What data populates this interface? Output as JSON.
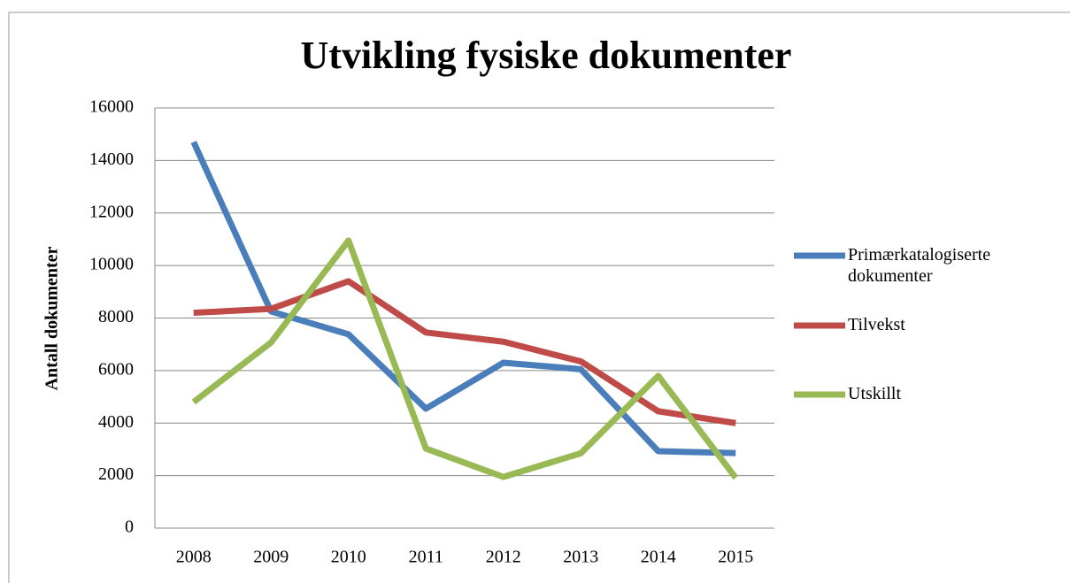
{
  "chart_data": {
    "type": "line",
    "title": "Utvikling fysiske dokumenter",
    "y_label": "Antall dokumenter",
    "categories": [
      "2008",
      "2009",
      "2010",
      "2011",
      "2012",
      "2013",
      "2014",
      "2015"
    ],
    "series": [
      {
        "name": "Primærkatalogiserte dokumenter",
        "color": "#4a7ebb",
        "values": [
          14700,
          8250,
          7380,
          4550,
          6300,
          6050,
          2930,
          2860
        ]
      },
      {
        "name": "Tilvekst",
        "color": "#be4b48",
        "values": [
          8200,
          8350,
          9400,
          7450,
          7100,
          6350,
          4450,
          4000
        ]
      },
      {
        "name": "Utskillt",
        "color": "#98b954",
        "values": [
          4800,
          7070,
          10950,
          3030,
          1950,
          2850,
          5800,
          1920
        ]
      }
    ],
    "ylim": [
      0,
      16000
    ],
    "yticks": [
      0,
      2000,
      4000,
      6000,
      8000,
      10000,
      12000,
      14000,
      16000
    ],
    "grid": true,
    "legend": "right"
  }
}
